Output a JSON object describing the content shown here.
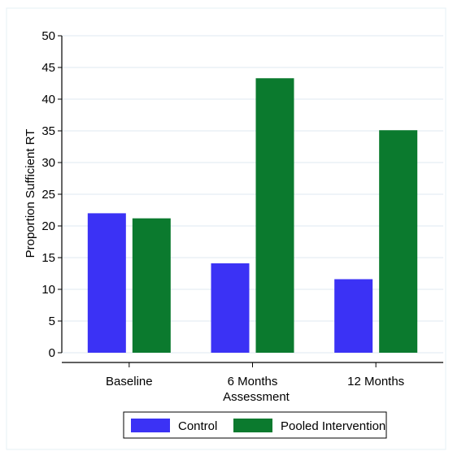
{
  "chart_data": {
    "type": "bar",
    "title": "",
    "xlabel": "Assessment",
    "ylabel": "Proportion Sufficient RT",
    "categories": [
      "Baseline",
      "6 Months",
      "12 Months"
    ],
    "series": [
      {
        "name": "Control",
        "values": [
          22.0,
          14.1,
          11.6
        ],
        "color": "#3b32f5"
      },
      {
        "name": "Pooled Intervention",
        "values": [
          21.2,
          43.3,
          35.1
        ],
        "color": "#0b7a2e"
      }
    ],
    "ylim": [
      0,
      50
    ],
    "yticks": [
      0,
      5,
      10,
      15,
      20,
      25,
      30,
      35,
      40,
      45,
      50
    ],
    "grid": true,
    "legend_position": "bottom",
    "colors": {
      "gridline": "#dfeaf0",
      "frame_border": "#e6f0f4",
      "axis": "#000000"
    }
  }
}
